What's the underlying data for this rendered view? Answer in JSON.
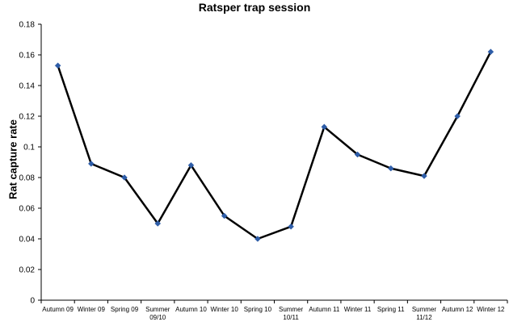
{
  "chart_data": {
    "type": "line",
    "title": "Ratsper trap session",
    "xlabel": "",
    "ylabel": "Rat capture rate",
    "ylim": [
      0,
      0.18
    ],
    "ytick_labels": [
      "0",
      "0.02",
      "0.04",
      "0.06",
      "0.08",
      "0.1",
      "0.12",
      "0.14",
      "0.16",
      "0.18"
    ],
    "categories": [
      [
        "Autumn 09"
      ],
      [
        "Winter 09"
      ],
      [
        "Spring 09"
      ],
      [
        "Summer",
        "09/10"
      ],
      [
        "Autumn 10"
      ],
      [
        "Winter 10"
      ],
      [
        "Spring 10"
      ],
      [
        "Summer",
        "10/11"
      ],
      [
        "Autumn 11"
      ],
      [
        "Winter 11"
      ],
      [
        "Spring 11"
      ],
      [
        "Summer",
        "11/12"
      ],
      [
        "Autumn 12"
      ],
      [
        "Winter 12"
      ]
    ],
    "series": [
      {
        "values": [
          0.153,
          0.089,
          0.08,
          0.05,
          0.088,
          0.055,
          0.04,
          0.048,
          0.113,
          0.095,
          0.086,
          0.081,
          0.12,
          0.162
        ],
        "line_color": "#000000",
        "marker_color": "#2e5da8"
      }
    ],
    "grid": false,
    "legend": "none"
  }
}
